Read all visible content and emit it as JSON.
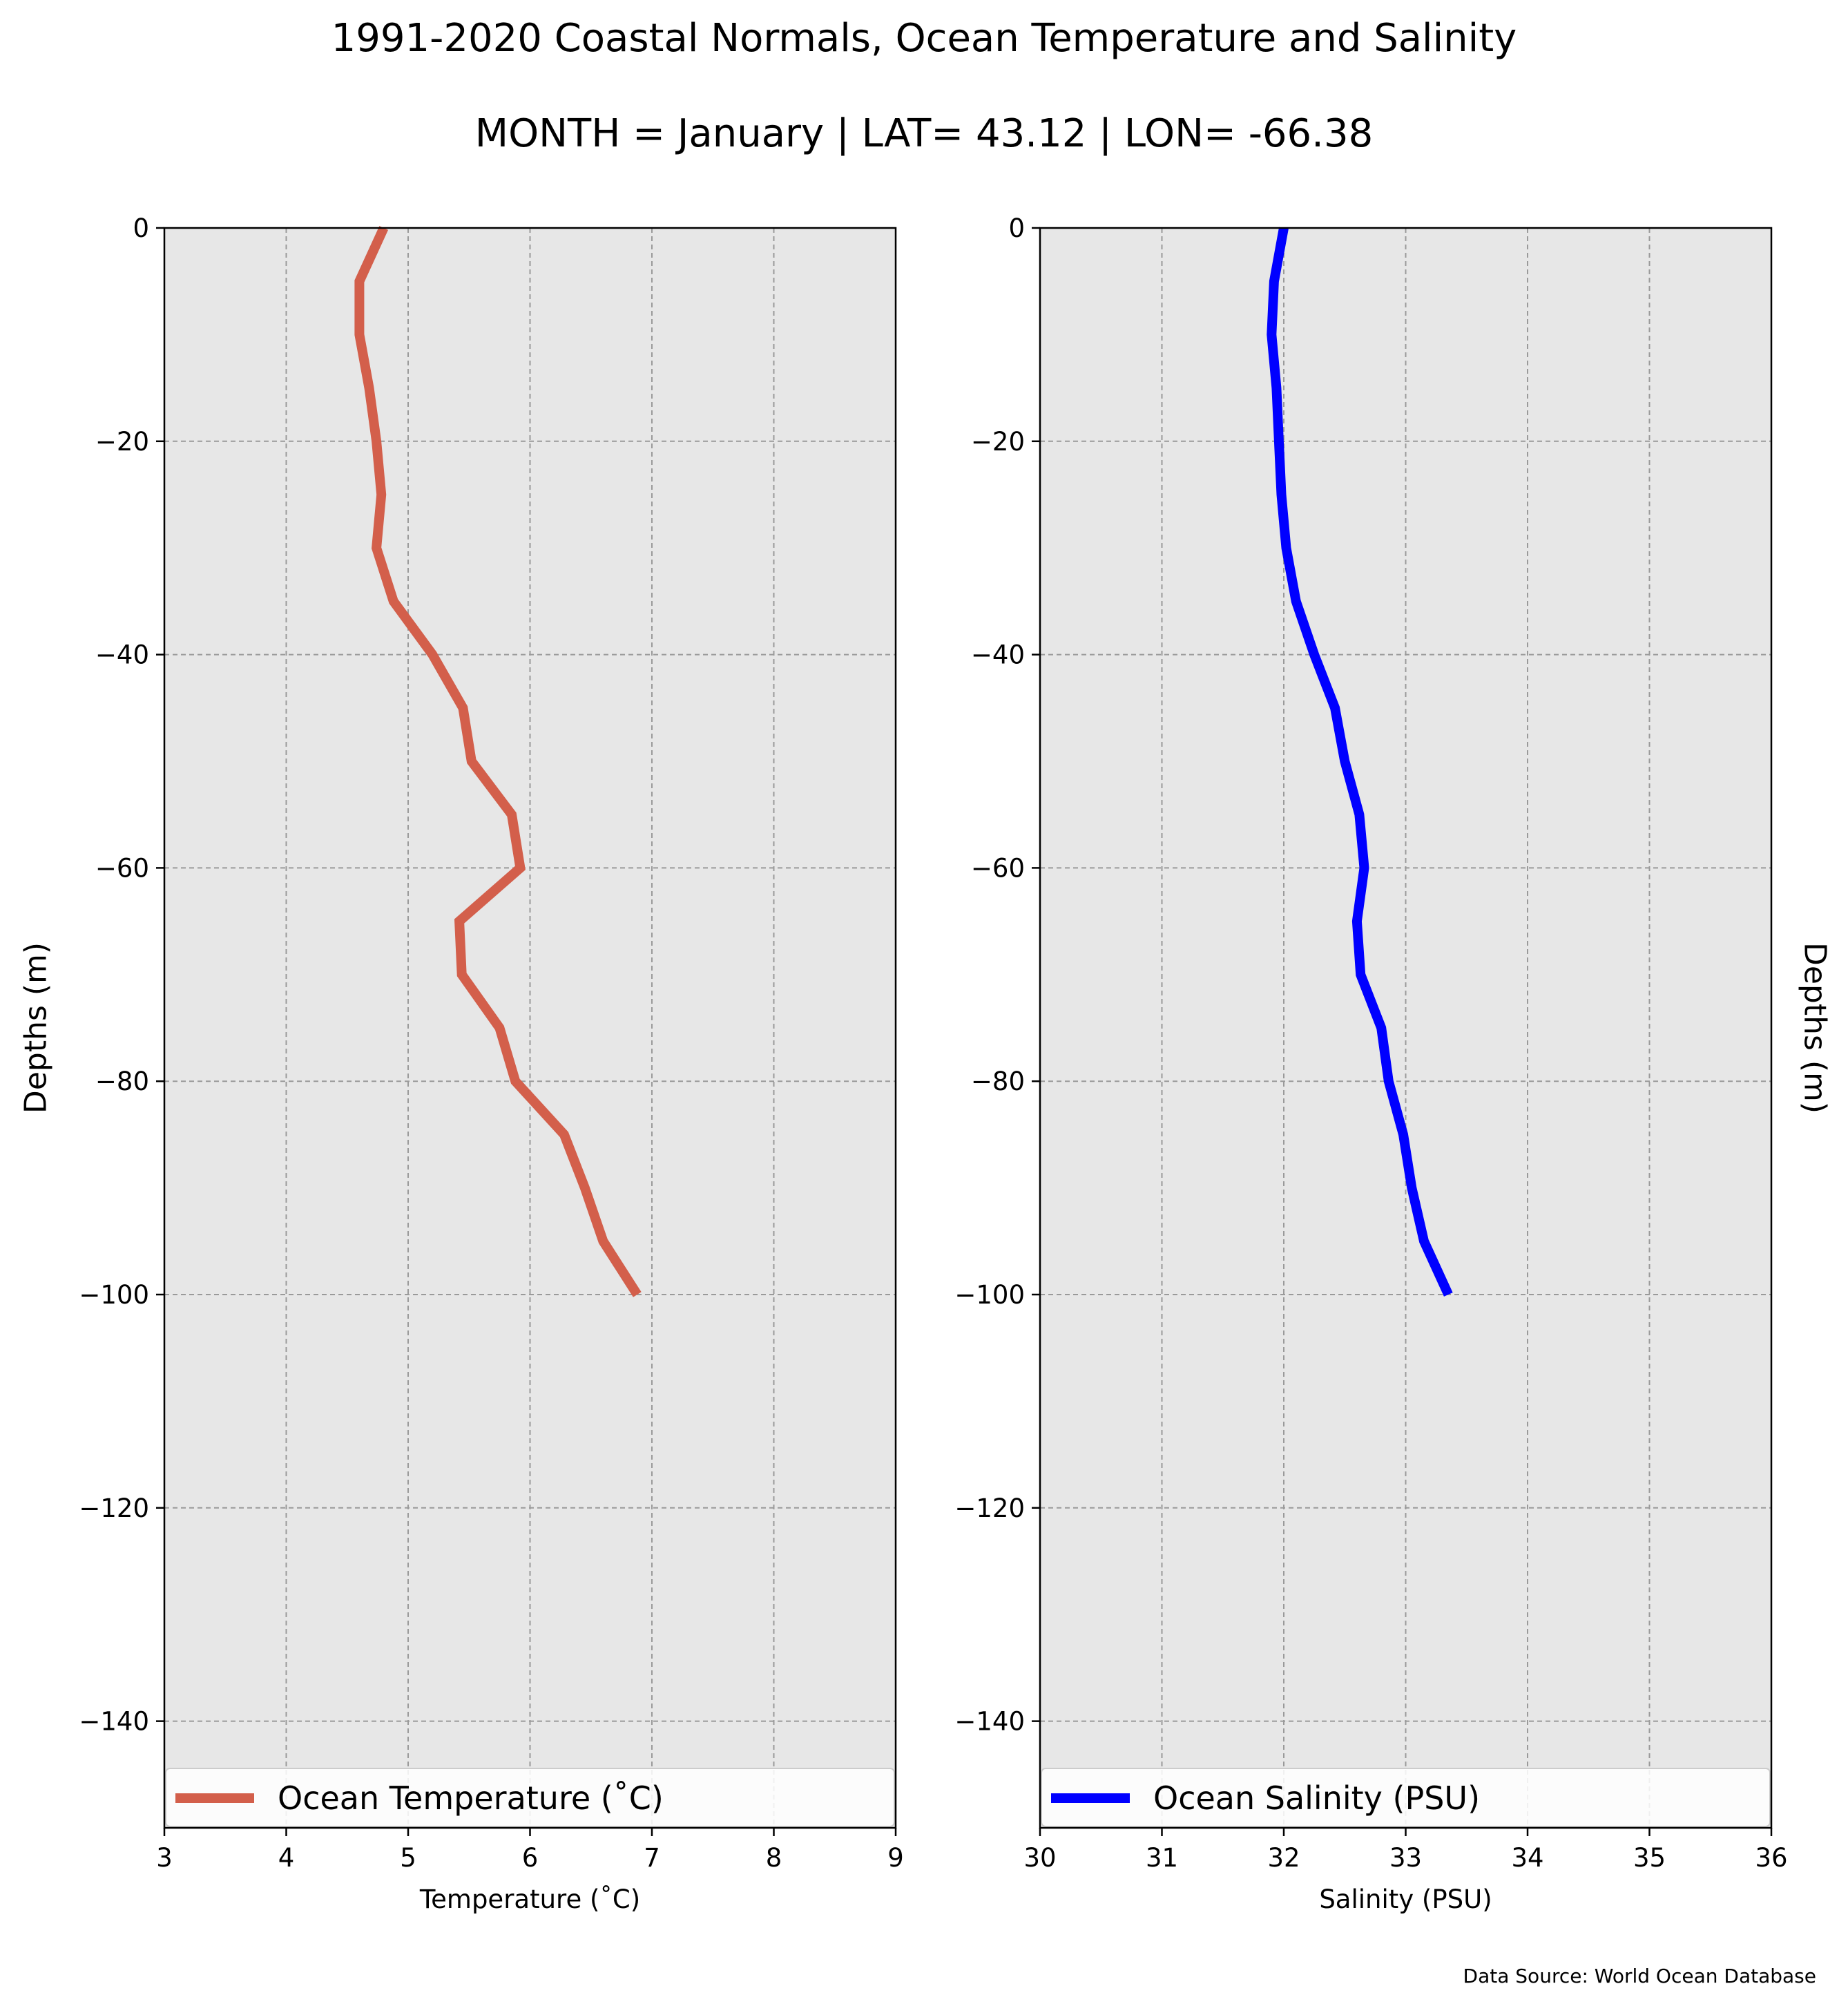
{
  "title_line1": "1991-2020 Coastal Normals, Ocean Temperature and Salinity",
  "title_line2": "MONTH = January | LAT= 43.12 | LON= -66.38",
  "source": "Data Source: World Ocean Database",
  "chart_data": [
    {
      "type": "line",
      "xlabel": "Temperature (˚C)",
      "ylabel": "Depths (m)",
      "xlim": [
        3,
        9
      ],
      "ylim": [
        -150,
        0
      ],
      "xticks": [
        3,
        4,
        5,
        6,
        7,
        8,
        9
      ],
      "yticks": [
        0,
        -20,
        -40,
        -60,
        -80,
        -100,
        -120,
        -140
      ],
      "ytick_labels": [
        "0",
        "−20",
        "−40",
        "−60",
        "−80",
        "−100",
        "−120",
        "−140"
      ],
      "grid": true,
      "legend_position": "bottom",
      "series": [
        {
          "name": "Ocean Temperature (˚C)",
          "color": "#d35f4b",
          "x": [
            4.8,
            4.6,
            4.6,
            4.68,
            4.74,
            4.78,
            4.74,
            4.88,
            5.2,
            5.45,
            5.52,
            5.85,
            5.92,
            5.42,
            5.44,
            5.75,
            5.88,
            6.28,
            6.45,
            6.6,
            6.88
          ],
          "y": [
            0,
            -5,
            -10,
            -15,
            -20,
            -25,
            -30,
            -35,
            -40,
            -45,
            -50,
            -55,
            -60,
            -65,
            -70,
            -75,
            -80,
            -85,
            -90,
            -95,
            -100
          ]
        }
      ]
    },
    {
      "type": "line",
      "xlabel": "Salinity (PSU)",
      "ylabel": "Depths (m)",
      "xlim": [
        30,
        36
      ],
      "ylim": [
        -150,
        0
      ],
      "xticks": [
        30,
        31,
        32,
        33,
        34,
        35,
        36
      ],
      "yticks": [
        0,
        -20,
        -40,
        -60,
        -80,
        -100,
        -120,
        -140
      ],
      "ytick_labels": [
        "0",
        "−20",
        "−40",
        "−60",
        "−80",
        "−100",
        "−120",
        "−140"
      ],
      "grid": true,
      "legend_position": "bottom",
      "series": [
        {
          "name": "Ocean Salinity (PSU)",
          "color": "#0000ff",
          "x": [
            32.0,
            31.92,
            31.9,
            31.94,
            31.96,
            31.98,
            32.02,
            32.1,
            32.25,
            32.42,
            32.5,
            32.62,
            32.66,
            32.6,
            32.63,
            32.8,
            32.86,
            32.98,
            33.05,
            33.15,
            33.35
          ],
          "y": [
            0,
            -5,
            -10,
            -15,
            -20,
            -25,
            -30,
            -35,
            -40,
            -45,
            -50,
            -55,
            -60,
            -65,
            -70,
            -75,
            -80,
            -85,
            -90,
            -95,
            -100
          ]
        }
      ]
    }
  ]
}
